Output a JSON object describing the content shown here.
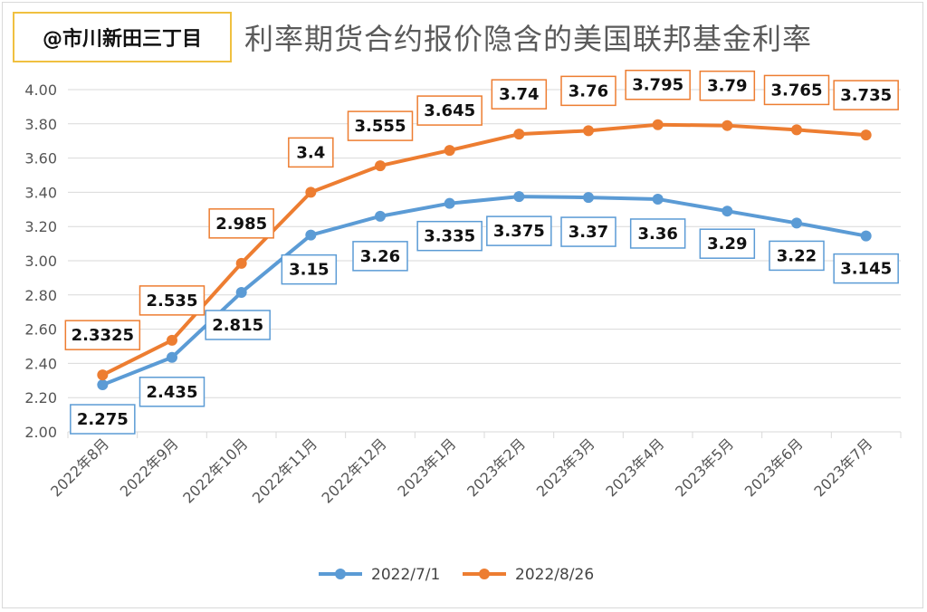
{
  "watermark": "@市川新田三丁目",
  "colors": {
    "series1": "#5b9bd5",
    "series2": "#ed7d31",
    "grid": "#d9d9d9",
    "badge_border": "#f0c040"
  },
  "chart_data": {
    "type": "line",
    "title": "利率期货合约报价隐含的美国联邦基金利率",
    "xlabel": "",
    "ylabel": "",
    "ylim": [
      2.0,
      4.0
    ],
    "yticks": [
      "2.00",
      "2.20",
      "2.40",
      "2.60",
      "2.80",
      "3.00",
      "3.20",
      "3.40",
      "3.60",
      "3.80",
      "4.00"
    ],
    "grid": true,
    "legend_position": "bottom",
    "categories": [
      "2022年8月",
      "2022年9月",
      "2022年10月",
      "2022年11月",
      "2022年12月",
      "2023年1月",
      "2023年2月",
      "2023年3月",
      "2023年4月",
      "2023年5月",
      "2023年6月",
      "2023年7月"
    ],
    "series": [
      {
        "name": "2022/7/1",
        "color": "#5b9bd5",
        "values": [
          2.275,
          2.435,
          2.815,
          3.15,
          3.26,
          3.335,
          3.375,
          3.37,
          3.36,
          3.29,
          3.22,
          3.145
        ],
        "labels": [
          "2.275",
          "2.435",
          "2.815",
          "3.15",
          "3.26",
          "3.335",
          "3.375",
          "3.37",
          "3.36",
          "3.29",
          "3.22",
          "3.145"
        ]
      },
      {
        "name": "2022/8/26",
        "color": "#ed7d31",
        "values": [
          2.3325,
          2.535,
          2.985,
          3.4,
          3.555,
          3.645,
          3.74,
          3.76,
          3.795,
          3.79,
          3.765,
          3.735
        ],
        "labels": [
          "2.3325",
          "2.535",
          "2.985",
          "3.4",
          "3.555",
          "3.645",
          "3.74",
          "3.76",
          "3.795",
          "3.79",
          "3.765",
          "3.735"
        ]
      }
    ]
  }
}
